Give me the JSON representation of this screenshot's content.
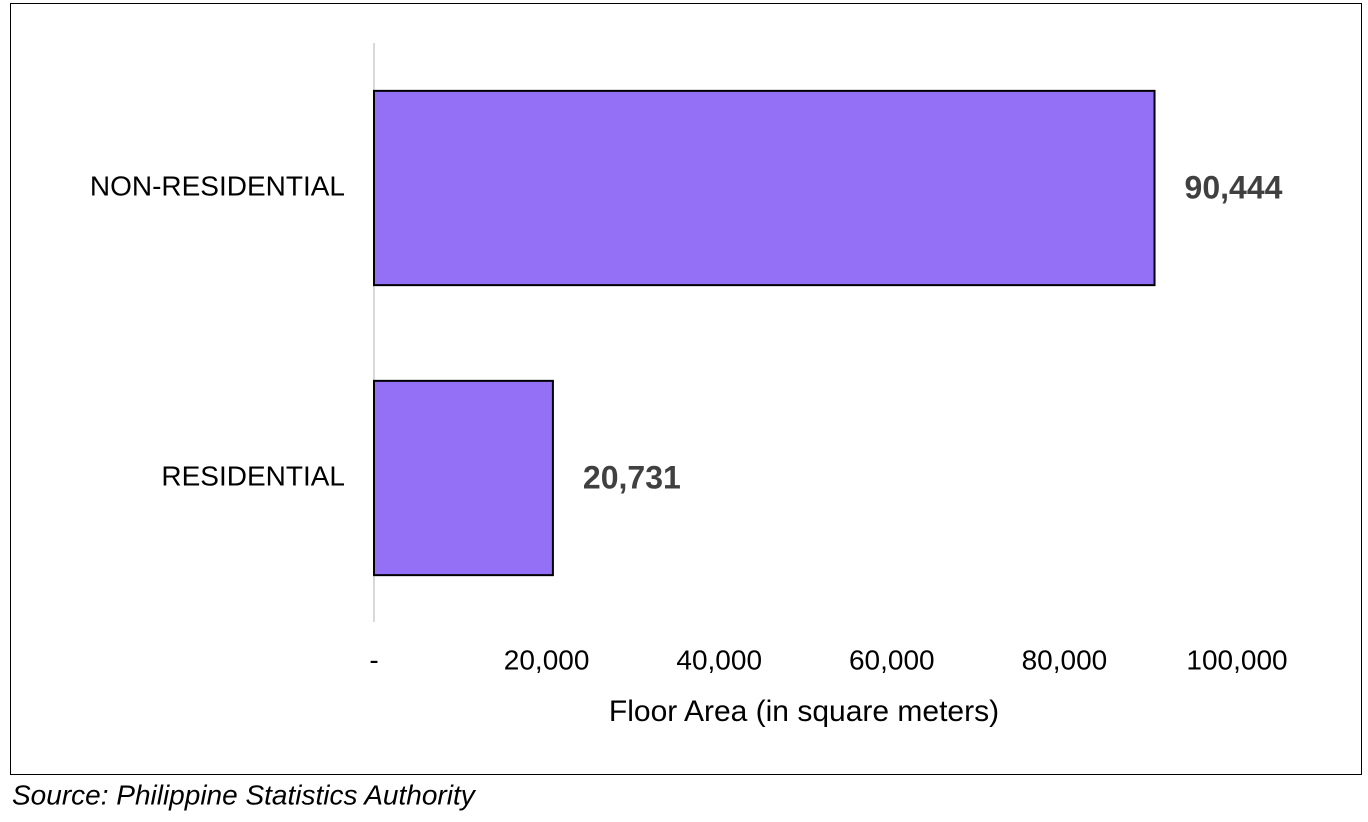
{
  "chart_data": {
    "type": "bar",
    "orientation": "horizontal",
    "categories": [
      "NON-RESIDENTIAL",
      "RESIDENTIAL"
    ],
    "values": [
      90444,
      20731
    ],
    "value_labels": [
      "90,444",
      "20,731"
    ],
    "color": "#9370f6",
    "xlabel": "Floor Area (in square meters)",
    "xlim": [
      0,
      100000
    ],
    "xticks": [
      {
        "value": 0,
        "label": "-"
      },
      {
        "value": 20000,
        "label": "20,000"
      },
      {
        "value": 40000,
        "label": "40,000"
      },
      {
        "value": 60000,
        "label": "60,000"
      },
      {
        "value": 80000,
        "label": "80,000"
      },
      {
        "value": 100000,
        "label": "100,000"
      }
    ],
    "grid": false,
    "source": "Source: Philippine Statistics Authority"
  }
}
